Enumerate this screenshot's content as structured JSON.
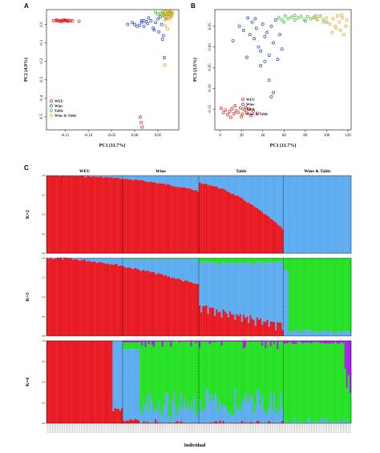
{
  "chart_data": [
    {
      "panel": "A",
      "type": "scatter",
      "xlabel": "PC1 (11.7%)",
      "ylabel": "PC2 (4.9%)",
      "xlim": [
        -0.19,
        0.095
      ],
      "ylim": [
        -0.57,
        0.08
      ],
      "xticks": [
        "-0.15",
        "-0.10",
        "-0.05",
        "0.00",
        "0.05"
      ],
      "yticks": [
        "0.0",
        "-0.1",
        "-0.2",
        "-0.3",
        "-0.4",
        "-0.5"
      ],
      "legend": {
        "placement": "bottom-left",
        "entries": [
          "WEU",
          "Wine",
          "Table",
          "Wine & Table"
        ]
      },
      "series": [
        {
          "name": "WEU",
          "color": "#e8141e",
          "points": [
            [
              -0.175,
              0.02
            ],
            [
              -0.17,
              0.022
            ],
            [
              -0.166,
              0.019
            ],
            [
              -0.162,
              0.021
            ],
            [
              -0.158,
              0.02
            ],
            [
              -0.154,
              0.023
            ],
            [
              -0.15,
              0.021
            ],
            [
              -0.146,
              0.02
            ],
            [
              -0.142,
              0.022
            ],
            [
              -0.138,
              0.019
            ],
            [
              -0.134,
              0.02
            ],
            [
              -0.16,
              0.017
            ],
            [
              -0.152,
              0.024
            ],
            [
              -0.144,
              0.017
            ],
            [
              -0.168,
              0.024
            ],
            [
              -0.156,
              0.016
            ],
            [
              -0.148,
              0.022
            ],
            [
              -0.12,
              0.017
            ]
          ]
        },
        {
          "name": "Wine",
          "color": "#1c3fd0",
          "points": [
            [
              -0.015,
              0.0
            ],
            [
              -0.005,
              0.01
            ],
            [
              0.0,
              0.0
            ],
            [
              0.005,
              -0.01
            ],
            [
              0.01,
              -0.005
            ],
            [
              0.015,
              0.012
            ],
            [
              0.02,
              0.02
            ],
            [
              0.025,
              0.015
            ],
            [
              0.028,
              0.005
            ],
            [
              0.03,
              0.035
            ],
            [
              0.035,
              0.02
            ],
            [
              0.04,
              -0.02
            ],
            [
              0.042,
              -0.03
            ],
            [
              0.045,
              0.01
            ],
            [
              0.05,
              0.03
            ],
            [
              0.052,
              -0.04
            ],
            [
              0.055,
              0.04
            ],
            [
              0.058,
              0.0
            ],
            [
              0.06,
              -0.08
            ],
            [
              0.064,
              -0.18
            ],
            [
              0.062,
              -0.06
            ],
            [
              0.015,
              0.02
            ],
            [
              0.02,
              -0.01
            ]
          ]
        },
        {
          "name": "Table",
          "color": "#2fbd2f",
          "points": [
            [
              0.055,
              0.06
            ],
            [
              0.058,
              0.05
            ],
            [
              0.06,
              0.065
            ],
            [
              0.064,
              0.045
            ],
            [
              0.066,
              0.07
            ],
            [
              0.07,
              0.055
            ],
            [
              0.072,
              0.06
            ],
            [
              0.074,
              0.04
            ],
            [
              0.076,
              0.067
            ],
            [
              0.078,
              0.05
            ],
            [
              0.08,
              0.062
            ],
            [
              0.068,
              0.03
            ],
            [
              0.062,
              0.055
            ],
            [
              0.074,
              0.072
            ],
            [
              0.045,
              0.065
            ],
            [
              0.05,
              0.055
            ]
          ]
        },
        {
          "name": "Wine & Table",
          "color": "#f0a01e",
          "points": [
            [
              0.06,
              0.06
            ],
            [
              0.063,
              0.05
            ],
            [
              0.066,
              0.068
            ],
            [
              0.069,
              0.04
            ],
            [
              0.072,
              0.06
            ],
            [
              0.075,
              0.055
            ],
            [
              0.078,
              0.065
            ],
            [
              0.08,
              0.045
            ],
            [
              0.082,
              0.06
            ],
            [
              0.065,
              0.025
            ],
            [
              0.07,
              0.035
            ],
            [
              0.076,
              0.05
            ],
            [
              0.08,
              0.072
            ],
            [
              0.068,
              0.058
            ],
            [
              0.073,
              0.07
            ],
            [
              0.076,
              0.03
            ],
            [
              0.071,
              -0.025
            ],
            [
              0.066,
              -0.008
            ],
            [
              0.065,
              -0.22
            ]
          ]
        },
        {
          "name": "",
          "color": "#e8141e",
          "points": [
            [
              0.012,
              -0.5
            ],
            [
              0.014,
              -0.53
            ],
            [
              0.016,
              -0.555
            ]
          ]
        }
      ]
    },
    {
      "panel": "B",
      "type": "scatter",
      "xlabel": "PC1 (11.7%)",
      "ylabel": "PC3 (3.5%)",
      "xlim": [
        -5,
        123
      ],
      "ylim": [
        -0.2,
        0.09
      ],
      "xticks": [
        "0",
        "20",
        "40",
        "60",
        "80",
        "100",
        "120"
      ],
      "yticks": [
        "0.05",
        "0.00",
        "-0.05",
        "-0.10",
        "-0.15"
      ],
      "legend": {
        "placement": "center",
        "entries": [
          "WEU",
          "Wine",
          "Table",
          "Wine & Table"
        ]
      },
      "series": [
        {
          "name": "WEU",
          "color": "#e8141e",
          "points": [
            [
              1,
              -0.148
            ],
            [
              3,
              -0.158
            ],
            [
              5,
              -0.152
            ],
            [
              7,
              -0.163
            ],
            [
              9,
              -0.156
            ],
            [
              11,
              -0.149
            ],
            [
              13,
              -0.161
            ],
            [
              15,
              -0.154
            ],
            [
              17,
              -0.158
            ],
            [
              19,
              -0.147
            ],
            [
              21,
              -0.162
            ],
            [
              23,
              -0.152
            ],
            [
              25,
              -0.159
            ],
            [
              27,
              -0.15
            ],
            [
              29,
              -0.165
            ],
            [
              31,
              -0.155
            ],
            [
              10,
              -0.17
            ],
            [
              20,
              -0.168
            ],
            [
              14,
              -0.142
            ],
            [
              24,
              -0.145
            ],
            [
              35,
              -0.16
            ]
          ]
        },
        {
          "name": "Wine",
          "color": "#1c3fd0",
          "points": [
            [
              18,
              0.05
            ],
            [
              22,
              0.04
            ],
            [
              26,
              0.07
            ],
            [
              28,
              0.03
            ],
            [
              30,
              0.06
            ],
            [
              32,
              0.02
            ],
            [
              34,
              0.045
            ],
            [
              36,
              0.0
            ],
            [
              38,
              -0.01
            ],
            [
              40,
              0.055
            ],
            [
              42,
              0.025
            ],
            [
              44,
              0.035
            ],
            [
              46,
              -0.02
            ],
            [
              48,
              0.05
            ],
            [
              50,
              0.01
            ],
            [
              52,
              0.065
            ],
            [
              54,
              -0.03
            ],
            [
              56,
              0.03
            ],
            [
              58,
              -0.005
            ],
            [
              38,
              -0.045
            ],
            [
              46,
              -0.08
            ],
            [
              50,
              -0.11
            ],
            [
              48,
              -0.12
            ],
            [
              12,
              0.015
            ],
            [
              25,
              -0.025
            ],
            [
              42,
              -0.035
            ],
            [
              33,
              0.068
            ]
          ]
        },
        {
          "name": "Table",
          "color": "#2fbd2f",
          "points": [
            [
              55,
              0.07
            ],
            [
              58,
              0.065
            ],
            [
              61,
              0.075
            ],
            [
              64,
              0.068
            ],
            [
              67,
              0.072
            ],
            [
              70,
              0.065
            ],
            [
              73,
              0.07
            ],
            [
              76,
              0.074
            ],
            [
              79,
              0.066
            ],
            [
              82,
              0.073
            ],
            [
              85,
              0.068
            ],
            [
              88,
              0.071
            ],
            [
              91,
              0.067
            ],
            [
              94,
              0.074
            ],
            [
              97,
              0.065
            ],
            [
              100,
              0.06
            ],
            [
              60,
              0.06
            ],
            [
              70,
              0.076
            ],
            [
              80,
              0.062
            ],
            [
              90,
              0.075
            ]
          ]
        },
        {
          "name": "Wine & Table",
          "color": "#f0a01e",
          "points": [
            [
              88,
              0.072
            ],
            [
              91,
              0.066
            ],
            [
              94,
              0.075
            ],
            [
              97,
              0.06
            ],
            [
              100,
              0.07
            ],
            [
              103,
              0.055
            ],
            [
              106,
              0.068
            ],
            [
              109,
              0.045
            ],
            [
              112,
              0.06
            ],
            [
              115,
              0.07
            ],
            [
              118,
              0.05
            ],
            [
              110,
              0.075
            ],
            [
              113,
              0.04
            ],
            [
              116,
              0.03
            ],
            [
              119,
              0.065
            ],
            [
              105,
              0.035
            ],
            [
              108,
              0.05
            ],
            [
              114,
              0.077
            ]
          ]
        }
      ]
    },
    {
      "panel": "C",
      "type": "bar",
      "stacked": true,
      "xlabel": "Individual",
      "groups": [
        "WEU",
        "Wine",
        "Table",
        "Wine & Table"
      ],
      "group_sizes": [
        45,
        45,
        50,
        40
      ],
      "colors": {
        "red": "#e8141e",
        "blue": "#5aaaf0",
        "green": "#20e020",
        "purple": "#a020e0"
      },
      "yticks": [
        "1.00",
        "0.75",
        "0.50",
        "0.25",
        "0.00"
      ],
      "rows": [
        {
          "label": "K=2",
          "components": [
            "red",
            "blue"
          ]
        },
        {
          "label": "K=3",
          "components": [
            "red",
            "blue",
            "green"
          ]
        },
        {
          "label": "K=4",
          "components": [
            "red",
            "blue",
            "green",
            "purple"
          ]
        }
      ]
    }
  ],
  "panels": {
    "a": {
      "letter": "A"
    },
    "b": {
      "letter": "B"
    },
    "c": {
      "letter": "C"
    }
  },
  "legend_labels": [
    "WEU",
    "Wine",
    "Table",
    "Wine & Table"
  ]
}
